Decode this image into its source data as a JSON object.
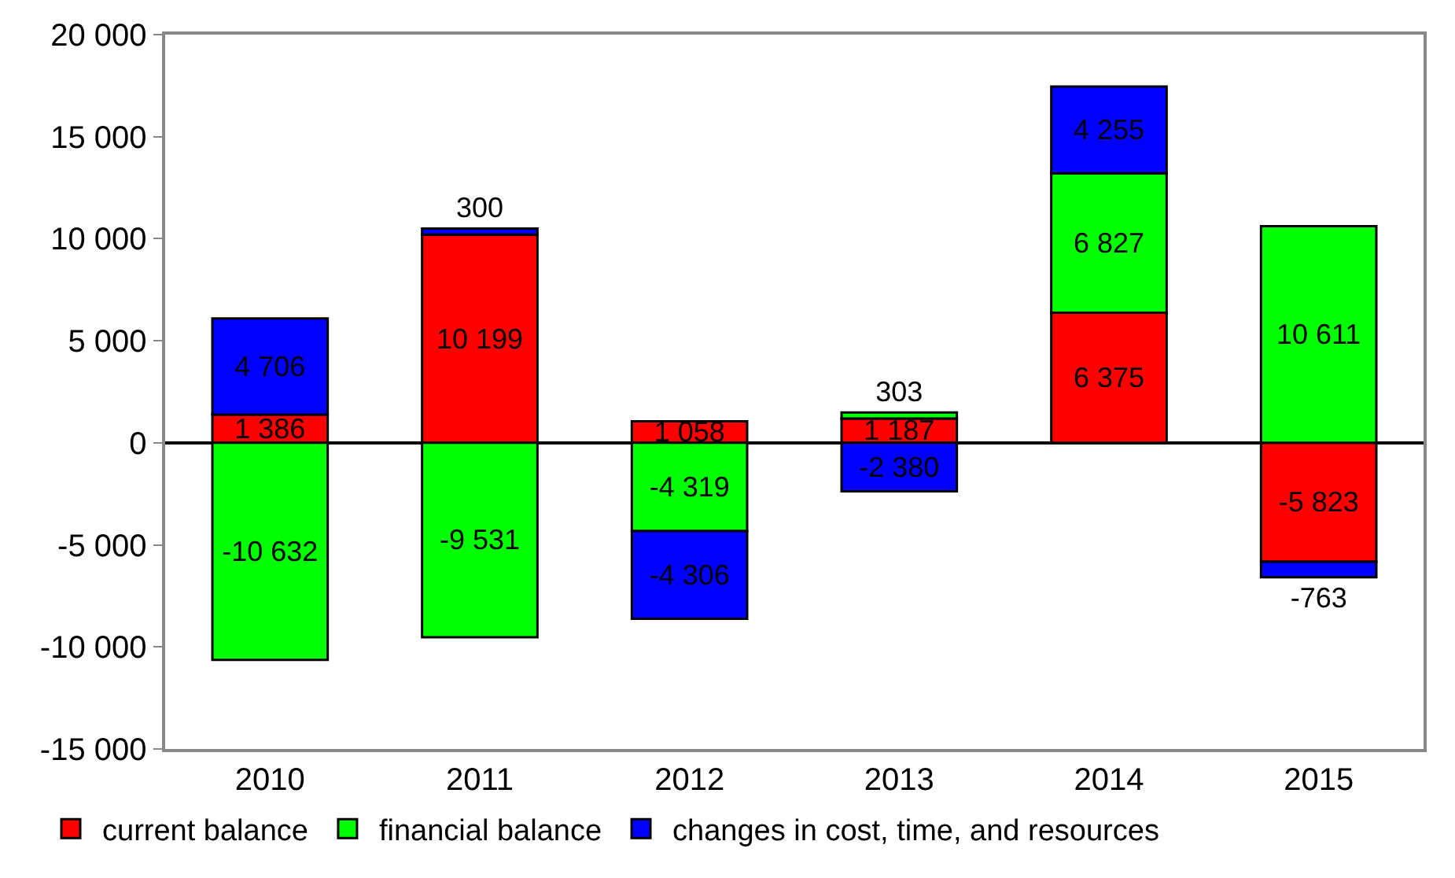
{
  "chart_data": {
    "type": "bar",
    "stacked": true,
    "categories": [
      "2010",
      "2011",
      "2012",
      "2013",
      "2014",
      "2015"
    ],
    "series": [
      {
        "name": "current balance",
        "color": "#ff0000",
        "values": [
          1386,
          10199,
          1058,
          1187,
          6375,
          -5823
        ],
        "value_labels": [
          "1 386",
          "10 199",
          "1 058",
          "1 187",
          "6 375",
          "-5 823"
        ]
      },
      {
        "name": "financial balance",
        "color": "#00ff00",
        "values": [
          -10632,
          -9531,
          -4319,
          303,
          6827,
          10611
        ],
        "value_labels": [
          "-10 632",
          "-9 531",
          "-4 319",
          "303",
          "6 827",
          "10 611"
        ]
      },
      {
        "name": "changes in cost, time, and resources",
        "color": "#0000ff",
        "values": [
          4706,
          300,
          -4306,
          -2380,
          4255,
          -763
        ],
        "value_labels": [
          "4 706",
          "300",
          "-4 306",
          "-2 380",
          "4 255",
          "-763"
        ]
      }
    ],
    "ylim": [
      -15000,
      20000
    ],
    "yticks": [
      {
        "value": -15000,
        "label": "-15 000"
      },
      {
        "value": -10000,
        "label": "-10 000"
      },
      {
        "value": -5000,
        "label": "-5 000"
      },
      0,
      {
        "value": 5000,
        "label": "5 000"
      },
      {
        "value": 10000,
        "label": "10 000"
      },
      {
        "value": 15000,
        "label": "15 000"
      },
      {
        "value": 20000,
        "label": "20 000"
      }
    ],
    "legend": "bottom"
  }
}
